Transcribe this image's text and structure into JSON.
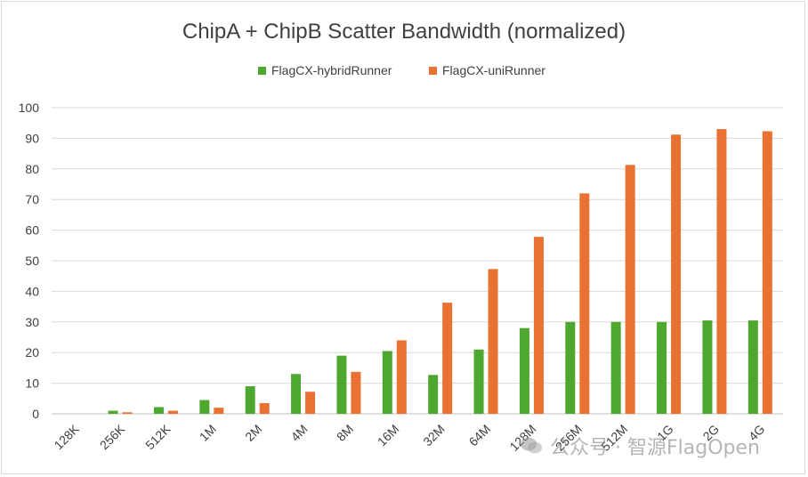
{
  "chart_data": {
    "type": "bar",
    "title": "ChipA + ChipB Scatter Bandwidth (normalized)",
    "xlabel": "",
    "ylabel": "",
    "ylim": [
      0,
      100
    ],
    "yticks": [
      0,
      10,
      20,
      30,
      40,
      50,
      60,
      70,
      80,
      90,
      100
    ],
    "grid": true,
    "legend_position": "top-center",
    "categories": [
      "128K",
      "256K",
      "512K",
      "1M",
      "2M",
      "4M",
      "8M",
      "16M",
      "32M",
      "64M",
      "128M",
      "256M",
      "512M",
      "1G",
      "2G",
      "4G"
    ],
    "series": [
      {
        "name": "FlagCX-hybridRunner",
        "color": "#4ea72e",
        "values": [
          0,
          1.0,
          2.2,
          4.5,
          9.0,
          13.0,
          19.0,
          20.5,
          12.7,
          21.0,
          28.0,
          30.0,
          30.0,
          30.0,
          30.5,
          30.5
        ]
      },
      {
        "name": "FlagCX-uniRunner",
        "color": "#e97132",
        "values": [
          0,
          0.5,
          1.0,
          2.0,
          3.5,
          7.2,
          13.7,
          24.0,
          36.3,
          47.3,
          57.8,
          72.0,
          81.3,
          91.2,
          93.0,
          92.3
        ]
      }
    ]
  },
  "watermark": {
    "text": "公众号 · 智源FlagOpen"
  }
}
